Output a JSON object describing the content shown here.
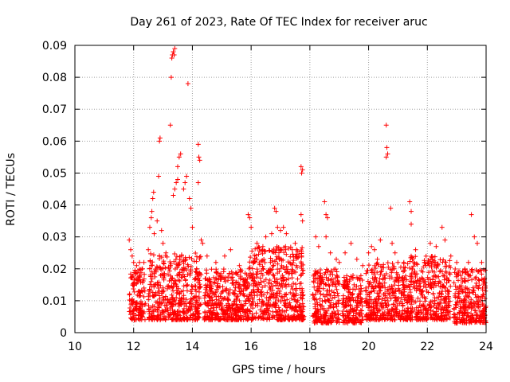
{
  "chart_data": {
    "type": "scatter",
    "title": "Day 261 of 2023, Rate Of TEC Index for receiver aruc",
    "xlabel": "GPS time / hours",
    "ylabel": "ROTI / TECUs",
    "xlim": [
      10,
      24
    ],
    "ylim": [
      0,
      0.09
    ],
    "x_ticks": [
      "10",
      "12",
      "14",
      "16",
      "18",
      "20",
      "22",
      "24"
    ],
    "y_ticks": [
      "0",
      "0.01",
      "0.02",
      "0.03",
      "0.04",
      "0.05",
      "0.06",
      "0.07",
      "0.08",
      "0.09"
    ],
    "grid": true,
    "legend": "none",
    "marker": "+",
    "color": "#ff0000",
    "series": [
      {
        "points": [
          [
            11.85,
            0.029
          ],
          [
            11.9,
            0.026
          ],
          [
            11.95,
            0.024
          ],
          [
            12.0,
            0.022
          ],
          [
            12.1,
            0.021
          ],
          [
            12.2,
            0.022
          ],
          [
            12.3,
            0.02
          ],
          [
            12.35,
            0.022
          ],
          [
            12.5,
            0.026
          ],
          [
            12.55,
            0.033
          ],
          [
            12.6,
            0.036
          ],
          [
            12.62,
            0.038
          ],
          [
            12.65,
            0.042
          ],
          [
            12.68,
            0.044
          ],
          [
            12.7,
            0.031
          ],
          [
            12.8,
            0.035
          ],
          [
            12.85,
            0.049
          ],
          [
            12.88,
            0.06
          ],
          [
            12.9,
            0.061
          ],
          [
            12.95,
            0.032
          ],
          [
            13.0,
            0.028
          ],
          [
            13.1,
            0.025
          ],
          [
            13.2,
            0.02
          ],
          [
            13.25,
            0.065
          ],
          [
            13.28,
            0.08
          ],
          [
            13.3,
            0.086
          ],
          [
            13.32,
            0.087
          ],
          [
            13.35,
            0.088
          ],
          [
            13.38,
            0.087
          ],
          [
            13.4,
            0.089
          ],
          [
            13.35,
            0.043
          ],
          [
            13.4,
            0.045
          ],
          [
            13.45,
            0.047
          ],
          [
            13.5,
            0.048
          ],
          [
            13.55,
            0.055
          ],
          [
            13.6,
            0.056
          ],
          [
            13.5,
            0.052
          ],
          [
            13.7,
            0.045
          ],
          [
            13.75,
            0.047
          ],
          [
            13.8,
            0.049
          ],
          [
            13.85,
            0.078
          ],
          [
            13.9,
            0.042
          ],
          [
            13.95,
            0.039
          ],
          [
            14.0,
            0.033
          ],
          [
            14.2,
            0.059
          ],
          [
            14.22,
            0.055
          ],
          [
            14.25,
            0.054
          ],
          [
            14.2,
            0.047
          ],
          [
            14.3,
            0.029
          ],
          [
            14.35,
            0.028
          ],
          [
            14.5,
            0.024
          ],
          [
            14.8,
            0.022
          ],
          [
            15.1,
            0.024
          ],
          [
            15.3,
            0.026
          ],
          [
            15.6,
            0.021
          ],
          [
            15.9,
            0.037
          ],
          [
            15.95,
            0.036
          ],
          [
            16.0,
            0.033
          ],
          [
            16.2,
            0.028
          ],
          [
            16.4,
            0.027
          ],
          [
            16.5,
            0.03
          ],
          [
            16.7,
            0.031
          ],
          [
            16.8,
            0.039
          ],
          [
            16.85,
            0.038
          ],
          [
            16.9,
            0.033
          ],
          [
            17.0,
            0.032
          ],
          [
            17.1,
            0.033
          ],
          [
            17.2,
            0.031
          ],
          [
            17.4,
            0.026
          ],
          [
            17.5,
            0.028
          ],
          [
            17.7,
            0.052
          ],
          [
            17.72,
            0.05
          ],
          [
            17.75,
            0.051
          ],
          [
            17.7,
            0.037
          ],
          [
            17.75,
            0.035
          ],
          [
            18.2,
            0.03
          ],
          [
            18.3,
            0.027
          ],
          [
            18.5,
            0.041
          ],
          [
            18.55,
            0.037
          ],
          [
            18.6,
            0.036
          ],
          [
            18.55,
            0.03
          ],
          [
            18.7,
            0.025
          ],
          [
            18.9,
            0.023
          ],
          [
            19.0,
            0.022
          ],
          [
            19.2,
            0.025
          ],
          [
            19.4,
            0.028
          ],
          [
            19.6,
            0.023
          ],
          [
            19.8,
            0.021
          ],
          [
            20.0,
            0.025
          ],
          [
            20.1,
            0.027
          ],
          [
            20.2,
            0.026
          ],
          [
            20.3,
            0.023
          ],
          [
            20.4,
            0.029
          ],
          [
            20.6,
            0.065
          ],
          [
            20.62,
            0.058
          ],
          [
            20.65,
            0.056
          ],
          [
            20.6,
            0.055
          ],
          [
            20.75,
            0.039
          ],
          [
            20.8,
            0.028
          ],
          [
            20.9,
            0.025
          ],
          [
            21.2,
            0.022
          ],
          [
            21.4,
            0.041
          ],
          [
            21.45,
            0.038
          ],
          [
            21.45,
            0.034
          ],
          [
            21.6,
            0.026
          ],
          [
            21.9,
            0.022
          ],
          [
            22.1,
            0.028
          ],
          [
            22.3,
            0.027
          ],
          [
            22.5,
            0.033
          ],
          [
            22.6,
            0.029
          ],
          [
            22.8,
            0.024
          ],
          [
            23.0,
            0.022
          ],
          [
            23.2,
            0.019
          ],
          [
            23.4,
            0.022
          ],
          [
            23.5,
            0.037
          ],
          [
            23.6,
            0.03
          ],
          [
            23.7,
            0.028
          ],
          [
            23.85,
            0.022
          ],
          [
            23.95,
            0.017
          ]
        ]
      }
    ],
    "bands": [
      {
        "x_start": 11.85,
        "x_end": 12.4,
        "y_min": 0.004,
        "y_max": 0.02
      },
      {
        "x_start": 12.5,
        "x_end": 14.3,
        "y_min": 0.004,
        "y_max": 0.025
      },
      {
        "x_start": 14.4,
        "x_end": 15.9,
        "y_min": 0.004,
        "y_max": 0.02
      },
      {
        "x_start": 15.9,
        "x_end": 17.8,
        "y_min": 0.004,
        "y_max": 0.027
      },
      {
        "x_start": 18.1,
        "x_end": 19.0,
        "y_min": 0.003,
        "y_max": 0.02
      },
      {
        "x_start": 19.1,
        "x_end": 19.8,
        "y_min": 0.003,
        "y_max": 0.018
      },
      {
        "x_start": 19.9,
        "x_end": 21.4,
        "y_min": 0.004,
        "y_max": 0.022
      },
      {
        "x_start": 21.4,
        "x_end": 22.8,
        "y_min": 0.004,
        "y_max": 0.024
      },
      {
        "x_start": 22.9,
        "x_end": 24.0,
        "y_min": 0.003,
        "y_max": 0.02
      }
    ]
  }
}
